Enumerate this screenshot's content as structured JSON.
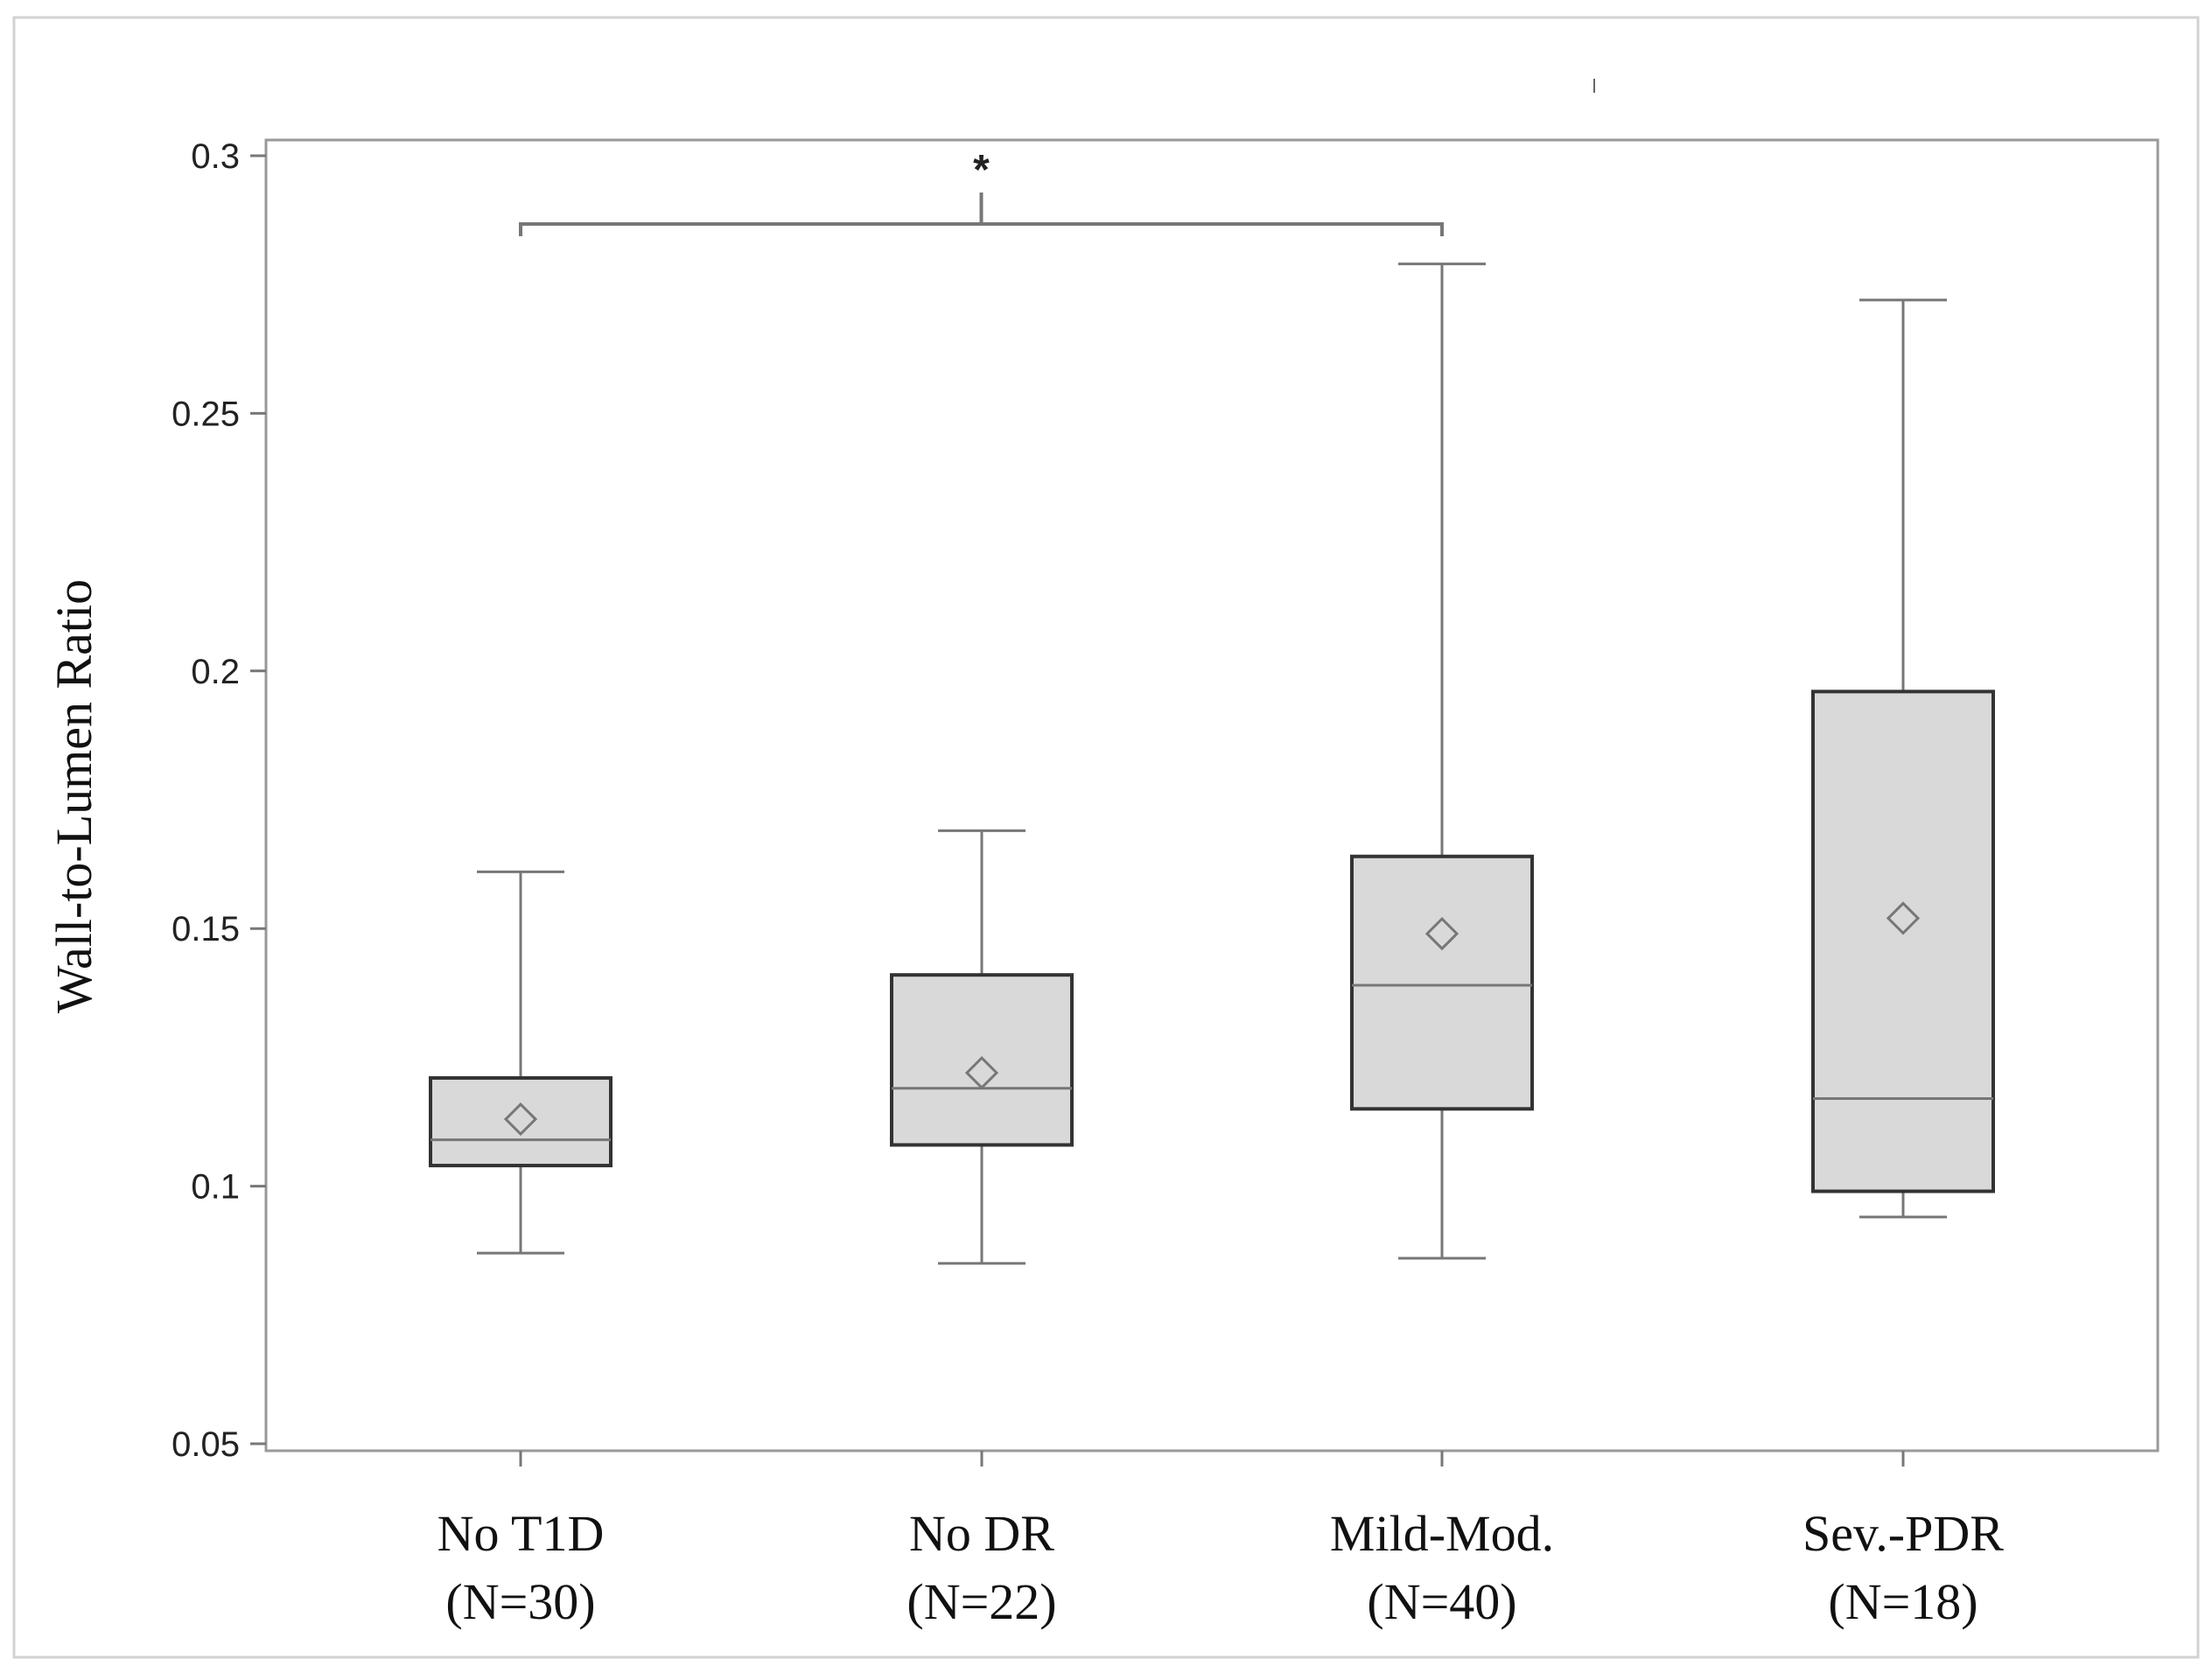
{
  "chart_data": {
    "type": "boxplot",
    "title": "",
    "xlabel": "",
    "ylabel": "Wall-to-Lumen Ratio",
    "ylim": [
      0.05,
      0.3
    ],
    "yticks": [
      0.05,
      0.1,
      0.15,
      0.2,
      0.25,
      0.3
    ],
    "ytick_labels": [
      "0.05",
      "0.1",
      "0.15",
      "0.2",
      "0.25",
      "0.3"
    ],
    "grid": false,
    "box_color": "#d9d9d9",
    "line_color": "#333333",
    "groups": [
      {
        "name": "No T1D",
        "n_label": "(N=30)",
        "whisker_low": 0.087,
        "q1": 0.104,
        "median": 0.109,
        "q3": 0.121,
        "whisker_high": 0.161,
        "mean": 0.113
      },
      {
        "name": "No DR",
        "n_label": "(N=22)",
        "whisker_low": 0.085,
        "q1": 0.108,
        "median": 0.119,
        "q3": 0.141,
        "whisker_high": 0.169,
        "mean": 0.122
      },
      {
        "name": "Mild-Mod.",
        "n_label": "(N=40)",
        "whisker_low": 0.086,
        "q1": 0.115,
        "median": 0.139,
        "q3": 0.164,
        "whisker_high": 0.279,
        "mean": 0.149
      },
      {
        "name": "Sev.-PDR",
        "n_label": "(N=18)",
        "whisker_low": 0.094,
        "q1": 0.099,
        "median": 0.117,
        "q3": 0.196,
        "whisker_high": 0.272,
        "mean": 0.152
      }
    ],
    "significance": [
      {
        "from": 0,
        "to": 2,
        "label": "*"
      }
    ]
  }
}
